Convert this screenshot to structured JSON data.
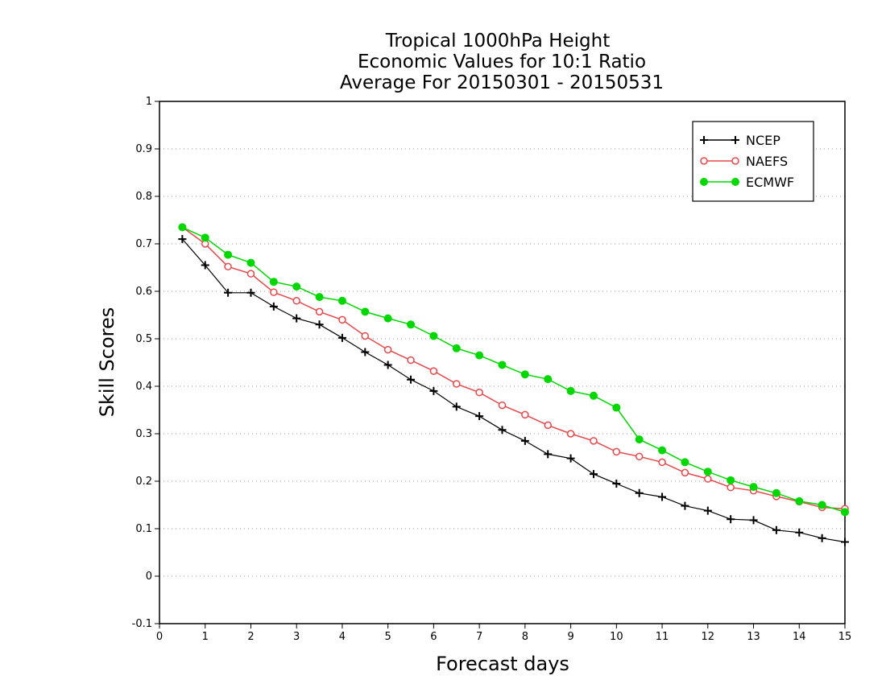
{
  "chart_data": {
    "type": "line",
    "title_lines": [
      "Tropical 1000hPa Height",
      "Economic Values for 10:1 Ratio",
      "Average For 20150301 - 20150531"
    ],
    "xlabel": "Forecast days",
    "ylabel": "Skill Scores",
    "xlim": [
      0,
      15
    ],
    "ylim": [
      -0.1,
      1
    ],
    "xticks": [
      0,
      1,
      2,
      3,
      4,
      5,
      6,
      7,
      8,
      9,
      10,
      11,
      12,
      13,
      14,
      15
    ],
    "yticks": [
      -0.1,
      0,
      0.1,
      0.2,
      0.3,
      0.4,
      0.5,
      0.6,
      0.7,
      0.8,
      0.9,
      1
    ],
    "ytick_labels": [
      "-0.1",
      "0",
      "0.1",
      "0.2",
      "0.3",
      "0.4",
      "0.5",
      "0.6",
      "0.7",
      "0.8",
      "0.9",
      "1"
    ],
    "grid": "horizontal-dotted",
    "legend_position": "top-right",
    "x": [
      0.5,
      1,
      1.5,
      2,
      2.5,
      3,
      3.5,
      4,
      4.5,
      5,
      5.5,
      6,
      6.5,
      7,
      7.5,
      8,
      8.5,
      9,
      9.5,
      10,
      10.5,
      11,
      11.5,
      12,
      12.5,
      13,
      13.5,
      14,
      14.5,
      15
    ],
    "series": [
      {
        "name": "NCEP",
        "color": "#000000",
        "marker": "plus",
        "values": [
          0.71,
          0.655,
          0.597,
          0.597,
          0.568,
          0.543,
          0.53,
          0.502,
          0.472,
          0.445,
          0.414,
          0.39,
          0.357,
          0.337,
          0.308,
          0.285,
          0.257,
          0.248,
          0.215,
          0.195,
          0.175,
          0.167,
          0.148,
          0.138,
          0.12,
          0.118,
          0.097,
          0.092,
          0.08,
          0.072
        ]
      },
      {
        "name": "NAEFS",
        "color": "#e8474a",
        "marker": "open-circle",
        "values": [
          0.735,
          0.7,
          0.652,
          0.637,
          0.598,
          0.58,
          0.557,
          0.54,
          0.506,
          0.477,
          0.455,
          0.432,
          0.405,
          0.387,
          0.36,
          0.34,
          0.318,
          0.3,
          0.285,
          0.262,
          0.252,
          0.24,
          0.218,
          0.205,
          0.187,
          0.18,
          0.168,
          0.157,
          0.145,
          0.142
        ]
      },
      {
        "name": "ECMWF",
        "color": "#00d800",
        "marker": "filled-circle",
        "values": [
          0.735,
          0.713,
          0.677,
          0.66,
          0.62,
          0.61,
          0.588,
          0.58,
          0.557,
          0.543,
          0.53,
          0.506,
          0.48,
          0.465,
          0.445,
          0.425,
          0.415,
          0.39,
          0.38,
          0.355,
          0.288,
          0.265,
          0.24,
          0.22,
          0.202,
          0.188,
          0.175,
          0.158,
          0.15,
          0.135
        ]
      }
    ]
  }
}
